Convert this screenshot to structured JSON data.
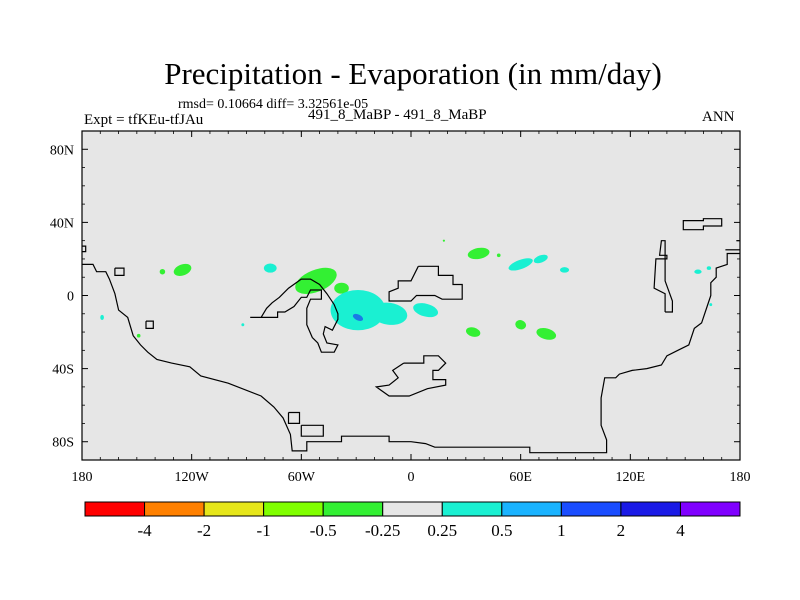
{
  "header": {
    "title": "Precipitation - Evaporation (in mm/day)",
    "stats": "rmsd= 0.10664 diff= 3.32561e-05",
    "experiment": "Expt = tfKEu-tfJAu",
    "difference": "491_8_MaBP - 491_8_MaBP",
    "season": "ANN"
  },
  "chart_data": {
    "type": "heatmap",
    "title": "Precipitation - Evaporation (in mm/day)",
    "projection": "cylindrical equidistant, global",
    "x_axis": {
      "range": [
        -180,
        180
      ],
      "tick_values": [
        -180,
        -120,
        -60,
        0,
        60,
        120,
        180
      ],
      "tick_labels": [
        "180",
        "120W",
        "60W",
        "0",
        "60E",
        "120E",
        "180"
      ]
    },
    "y_axis": {
      "range": [
        -90,
        90
      ],
      "tick_values": [
        80,
        40,
        0,
        -40,
        -80
      ],
      "tick_labels": [
        "80N",
        "40N",
        "0",
        "40S",
        "80S"
      ]
    },
    "background_color": "#e6e6e6",
    "colorbar": {
      "labels": [
        "-4",
        "-2",
        "-1",
        "-0.5",
        "-0.25",
        "0.25",
        "0.5",
        "1",
        "2",
        "4"
      ],
      "colors": [
        "#ff0000",
        "#ff8000",
        "#e6e61a",
        "#80ff00",
        "#33f033",
        "#e6e6e6",
        "#1af0d2",
        "#1ab3ff",
        "#1a4dff",
        "#1a1ae6",
        "#8000ff"
      ]
    },
    "anomalies": [
      {
        "lon": -125,
        "lat": 14,
        "rx": 5,
        "ry": 3,
        "rot": -20,
        "color": "#33f033",
        "value_range": "-0.5 to -0.25"
      },
      {
        "lon": -136,
        "lat": 13,
        "rx": 1.5,
        "ry": 1.5,
        "rot": 0,
        "color": "#33f033",
        "value_range": "-0.5 to -0.25"
      },
      {
        "lon": -77,
        "lat": 15,
        "rx": 3.5,
        "ry": 2.5,
        "rot": 0,
        "color": "#1af0d2",
        "value_range": "0.25 to 0.5"
      },
      {
        "lon": -52,
        "lat": 8,
        "rx": 12,
        "ry": 6,
        "rot": -22,
        "color": "#33f033",
        "value_range": "-0.5 to -0.25"
      },
      {
        "lon": -38,
        "lat": 4,
        "rx": 4,
        "ry": 3,
        "rot": 0,
        "color": "#33f033",
        "value_range": "-0.5 to -0.25"
      },
      {
        "lon": -29,
        "lat": -8,
        "rx": 15,
        "ry": 11,
        "rot": 0,
        "color": "#1af0d2",
        "value_range": "0.25 to 0.5"
      },
      {
        "lon": -12,
        "lat": -10,
        "rx": 10,
        "ry": 6,
        "rot": 8,
        "color": "#1af0d2",
        "value_range": "0.25 to 0.5"
      },
      {
        "lon": -29,
        "lat": -12,
        "rx": 3,
        "ry": 1.6,
        "rot": 25,
        "color": "#1a7ae6",
        "value_range": "0.5 to 1"
      },
      {
        "lon": 8,
        "lat": -8,
        "rx": 7,
        "ry": 3.5,
        "rot": 15,
        "color": "#1af0d2",
        "value_range": "0.25 to 0.5"
      },
      {
        "lon": 37,
        "lat": 23,
        "rx": 6,
        "ry": 3,
        "rot": -10,
        "color": "#33f033",
        "value_range": "-0.5 to -0.25"
      },
      {
        "lon": 48,
        "lat": 22,
        "rx": 1,
        "ry": 1,
        "rot": 0,
        "color": "#33f033",
        "value_range": "-0.5 to -0.25"
      },
      {
        "lon": 18,
        "lat": 30,
        "rx": 0.6,
        "ry": 0.6,
        "rot": 0,
        "color": "#33f033",
        "value_range": "-0.5 to -0.25"
      },
      {
        "lon": 60,
        "lat": 17,
        "rx": 7,
        "ry": 2.5,
        "rot": -20,
        "color": "#1af0d2",
        "value_range": "0.25 to 0.5"
      },
      {
        "lon": 71,
        "lat": 20,
        "rx": 4,
        "ry": 2,
        "rot": -20,
        "color": "#1af0d2",
        "value_range": "0.25 to 0.5"
      },
      {
        "lon": 84,
        "lat": 14,
        "rx": 2.5,
        "ry": 1.5,
        "rot": 0,
        "color": "#1af0d2",
        "value_range": "0.25 to 0.5"
      },
      {
        "lon": 34,
        "lat": -20,
        "rx": 4,
        "ry": 2.5,
        "rot": 15,
        "color": "#33f033",
        "value_range": "-0.5 to -0.25"
      },
      {
        "lon": 60,
        "lat": -16,
        "rx": 3,
        "ry": 2.5,
        "rot": 20,
        "color": "#33f033",
        "value_range": "-0.5 to -0.25"
      },
      {
        "lon": 74,
        "lat": -21,
        "rx": 5.5,
        "ry": 3,
        "rot": 15,
        "color": "#33f033",
        "value_range": "-0.5 to -0.25"
      },
      {
        "lon": 157,
        "lat": 13,
        "rx": 2,
        "ry": 1.2,
        "rot": 0,
        "color": "#1af0d2",
        "value_range": "0.25 to 0.5"
      },
      {
        "lon": 163,
        "lat": 15,
        "rx": 1.2,
        "ry": 1,
        "rot": 0,
        "color": "#1af0d2",
        "value_range": "0.25 to 0.5"
      },
      {
        "lon": 164,
        "lat": -5,
        "rx": 0.8,
        "ry": 0.8,
        "rot": 0,
        "color": "#1af0d2",
        "value_range": "0.25 to 0.5"
      },
      {
        "lon": -169,
        "lat": -12,
        "rx": 1,
        "ry": 1.4,
        "rot": 0,
        "color": "#1af0d2",
        "value_range": "0.25 to 0.5"
      },
      {
        "lon": -149,
        "lat": -22,
        "rx": 1,
        "ry": 1,
        "rot": 0,
        "color": "#33f033",
        "value_range": "-0.5 to -0.25"
      },
      {
        "lon": -92,
        "lat": -16,
        "rx": 0.8,
        "ry": 0.8,
        "rot": 0,
        "color": "#1af0d2",
        "value_range": "0.25 to 0.5"
      }
    ],
    "coastlines": [
      [
        [
          -180,
          24
        ],
        [
          -178,
          24
        ],
        [
          -178,
          27
        ],
        [
          -180,
          27
        ]
      ],
      [
        [
          -180,
          17
        ],
        [
          -174,
          17
        ],
        [
          -172,
          13
        ],
        [
          -167,
          13
        ],
        [
          -165,
          9
        ],
        [
          -162,
          1
        ],
        [
          -160,
          -8
        ],
        [
          -155,
          -12
        ],
        [
          -152,
          -22
        ],
        [
          -148,
          -27
        ],
        [
          -144,
          -31
        ],
        [
          -139,
          -35
        ],
        [
          -131,
          -37
        ],
        [
          -121,
          -39
        ],
        [
          -115,
          -44
        ],
        [
          -100,
          -48
        ],
        [
          -82,
          -55
        ],
        [
          -75,
          -61
        ],
        [
          -70,
          -67
        ],
        [
          -66,
          -76
        ],
        [
          -65,
          -85
        ],
        [
          -57,
          -85
        ],
        [
          -57,
          -80
        ],
        [
          -38,
          -80
        ],
        [
          -38,
          -77
        ],
        [
          -12,
          -77
        ],
        [
          -12,
          -80
        ],
        [
          0,
          -80
        ],
        [
          8,
          -81
        ],
        [
          13,
          -83
        ],
        [
          65,
          -83
        ],
        [
          65,
          -86
        ],
        [
          107,
          -86
        ],
        [
          107,
          -79
        ],
        [
          104,
          -71
        ],
        [
          104,
          -56
        ],
        [
          106,
          -45
        ],
        [
          112,
          -45
        ],
        [
          114,
          -43
        ],
        [
          121,
          -41
        ],
        [
          129,
          -40
        ],
        [
          137,
          -38
        ],
        [
          140,
          -33
        ],
        [
          146,
          -30
        ],
        [
          152,
          -27
        ],
        [
          155,
          -18
        ],
        [
          159,
          -15
        ],
        [
          162,
          -6
        ],
        [
          164,
          0
        ],
        [
          164,
          7
        ],
        [
          167,
          10
        ],
        [
          167,
          15
        ],
        [
          173,
          17
        ],
        [
          173,
          23
        ],
        [
          180,
          23
        ]
      ],
      [
        [
          -162,
          15
        ],
        [
          -157,
          15
        ],
        [
          -157,
          11
        ],
        [
          -162,
          11
        ],
        [
          -162,
          15
        ]
      ],
      [
        [
          -145,
          -14
        ],
        [
          -141,
          -14
        ],
        [
          -141,
          -18
        ],
        [
          -145,
          -18
        ],
        [
          -145,
          -14
        ]
      ],
      [
        [
          -88,
          -12
        ],
        [
          -73,
          -12
        ],
        [
          -73,
          -9
        ],
        [
          -69,
          -9
        ],
        [
          -64,
          -6
        ],
        [
          -60,
          -1
        ],
        [
          -57,
          -1
        ],
        [
          -55,
          3
        ],
        [
          -49,
          3
        ],
        [
          -49,
          -2
        ],
        [
          -55,
          -2
        ],
        [
          -57,
          -7
        ],
        [
          -57,
          -16
        ],
        [
          -54,
          -23
        ],
        [
          -51,
          -26
        ],
        [
          -49,
          -31
        ],
        [
          -42,
          -31
        ],
        [
          -40,
          -27
        ],
        [
          -46,
          -26
        ],
        [
          -48,
          -21
        ],
        [
          -47,
          -17
        ],
        [
          -43,
          -19
        ],
        [
          -40,
          -13
        ],
        [
          -40,
          -10
        ],
        [
          -42,
          -5
        ],
        [
          -46,
          1
        ],
        [
          -50,
          6
        ],
        [
          -55,
          9
        ],
        [
          -60,
          9
        ],
        [
          -67,
          4
        ],
        [
          -72,
          -1
        ],
        [
          -76,
          -4
        ],
        [
          -79,
          -7
        ],
        [
          -82,
          -12
        ],
        [
          -88,
          -12
        ]
      ],
      [
        [
          -67,
          -64
        ],
        [
          -61,
          -64
        ],
        [
          -61,
          -70
        ],
        [
          -67,
          -70
        ],
        [
          -67,
          -64
        ]
      ],
      [
        [
          -60,
          -71
        ],
        [
          -48,
          -71
        ],
        [
          -48,
          -77
        ],
        [
          -60,
          -77
        ],
        [
          -60,
          -71
        ]
      ],
      [
        [
          4,
          16
        ],
        [
          15,
          16
        ],
        [
          15,
          11
        ],
        [
          23,
          11
        ],
        [
          23,
          6
        ],
        [
          28,
          6
        ],
        [
          28,
          -2
        ],
        [
          17,
          -2
        ],
        [
          13,
          0
        ],
        [
          3,
          0
        ],
        [
          0,
          -3
        ],
        [
          -12,
          -3
        ],
        [
          -12,
          2
        ],
        [
          -7,
          4
        ],
        [
          -7,
          8
        ],
        [
          0,
          8
        ],
        [
          4,
          16
        ]
      ],
      [
        [
          -4,
          -37
        ],
        [
          7,
          -37
        ],
        [
          7,
          -33
        ],
        [
          15,
          -33
        ],
        [
          19,
          -37
        ],
        [
          15,
          -41
        ],
        [
          12,
          -41
        ],
        [
          12,
          -46
        ],
        [
          19,
          -46
        ],
        [
          19,
          -49
        ],
        [
          9,
          -51
        ],
        [
          -1,
          -55
        ],
        [
          -12,
          -55
        ],
        [
          -19,
          -50
        ],
        [
          -12,
          -49
        ],
        [
          -7,
          -45
        ],
        [
          -10,
          -41
        ],
        [
          -4,
          -37
        ]
      ],
      [
        [
          139,
          -9
        ],
        [
          139,
          1
        ],
        [
          133,
          4
        ],
        [
          134,
          20
        ],
        [
          140,
          20
        ],
        [
          140,
          22
        ],
        [
          136,
          22
        ],
        [
          137,
          30
        ],
        [
          139,
          30
        ],
        [
          139,
          8
        ],
        [
          143,
          -3
        ],
        [
          143,
          -9
        ],
        [
          139,
          -9
        ]
      ],
      [
        [
          150,
          41
        ],
        [
          160,
          41
        ],
        [
          160,
          42
        ],
        [
          170,
          42
        ],
        [
          170,
          38
        ],
        [
          160,
          38
        ],
        [
          160,
          36
        ],
        [
          149,
          36
        ],
        [
          149,
          41
        ],
        [
          150,
          41
        ]
      ],
      [
        [
          178,
          30
        ],
        [
          180,
          30
        ]
      ],
      [
        [
          172,
          25
        ],
        [
          180,
          25
        ]
      ]
    ]
  }
}
